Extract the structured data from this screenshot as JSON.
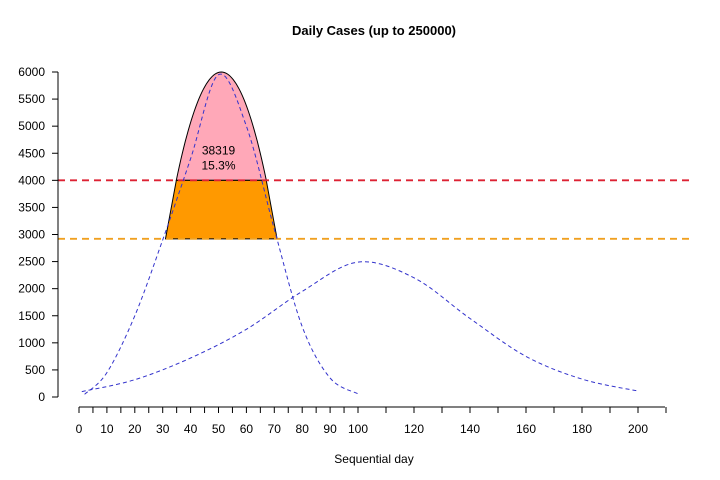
{
  "chart_data": {
    "type": "area",
    "title": "Daily Cases (up to 250000)",
    "xlabel": "Sequential day",
    "ylabel": "",
    "ylim": [
      0,
      6000
    ],
    "xlim": [
      0,
      210
    ],
    "grid": false,
    "x_ticks": [
      0,
      10,
      20,
      30,
      40,
      50,
      60,
      70,
      80,
      90,
      100,
      120,
      140,
      160,
      180,
      200
    ],
    "y_ticks": [
      0,
      500,
      1000,
      1500,
      2000,
      2500,
      3000,
      3500,
      4000,
      4500,
      5000,
      5500,
      6000
    ],
    "series": [
      {
        "style": "dashed",
        "color": "#3333cc",
        "x": [
          2,
          10,
          20,
          30,
          40,
          50,
          60,
          70,
          80,
          90,
          100
        ],
        "y": [
          50,
          450,
          1500,
          2900,
          4400,
          5950,
          5000,
          3100,
          1300,
          350,
          60
        ]
      },
      {
        "style": "dashed",
        "color": "#3333cc",
        "x": [
          1,
          20,
          40,
          60,
          80,
          100,
          120,
          140,
          160,
          180,
          200
        ],
        "y": [
          100,
          320,
          720,
          1250,
          1950,
          2490,
          2200,
          1450,
          750,
          330,
          110
        ]
      }
    ],
    "shaded_peak": {
      "x_range": [
        31,
        71
      ],
      "upper_band": {
        "y_from": 4000,
        "color": "#ffa8b8"
      },
      "lower_band": {
        "y_from": 2920,
        "y_to": 4000,
        "color": "#ff9900"
      }
    },
    "reference_lines": [
      {
        "y": 4000,
        "color": "#dd2233",
        "style": "dashed"
      },
      {
        "y": 2920,
        "color": "#f0a020",
        "style": "dashed"
      }
    ],
    "annotations": [
      {
        "text": "38319",
        "x": 50,
        "y": 4480
      },
      {
        "text": "15.3%",
        "x": 50,
        "y": 4200
      }
    ]
  }
}
